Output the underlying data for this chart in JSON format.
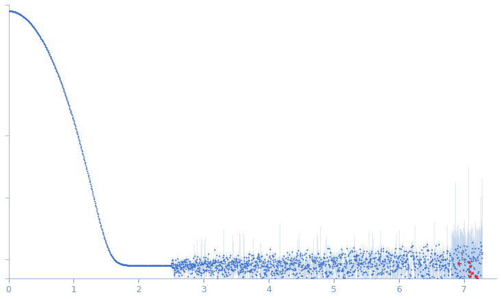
{
  "x_min": 0.0,
  "x_max": 7.5,
  "x_ticks": [
    0,
    1,
    2,
    3,
    4,
    5,
    6,
    7
  ],
  "dot_color": "#3a6ecc",
  "error_color": "#a8c4e8",
  "outlier_color": "#e03030",
  "bg_color": "#ffffff",
  "axis_color": "#a0b8d8",
  "tick_color": "#7090c0",
  "n_points_smooth": 350,
  "n_points_noisy": 1500,
  "seed": 42,
  "I0": 1000.0,
  "Rg": 3.5,
  "background": 0.08,
  "y_log_min": -1.3,
  "y_log_max": 3.1
}
